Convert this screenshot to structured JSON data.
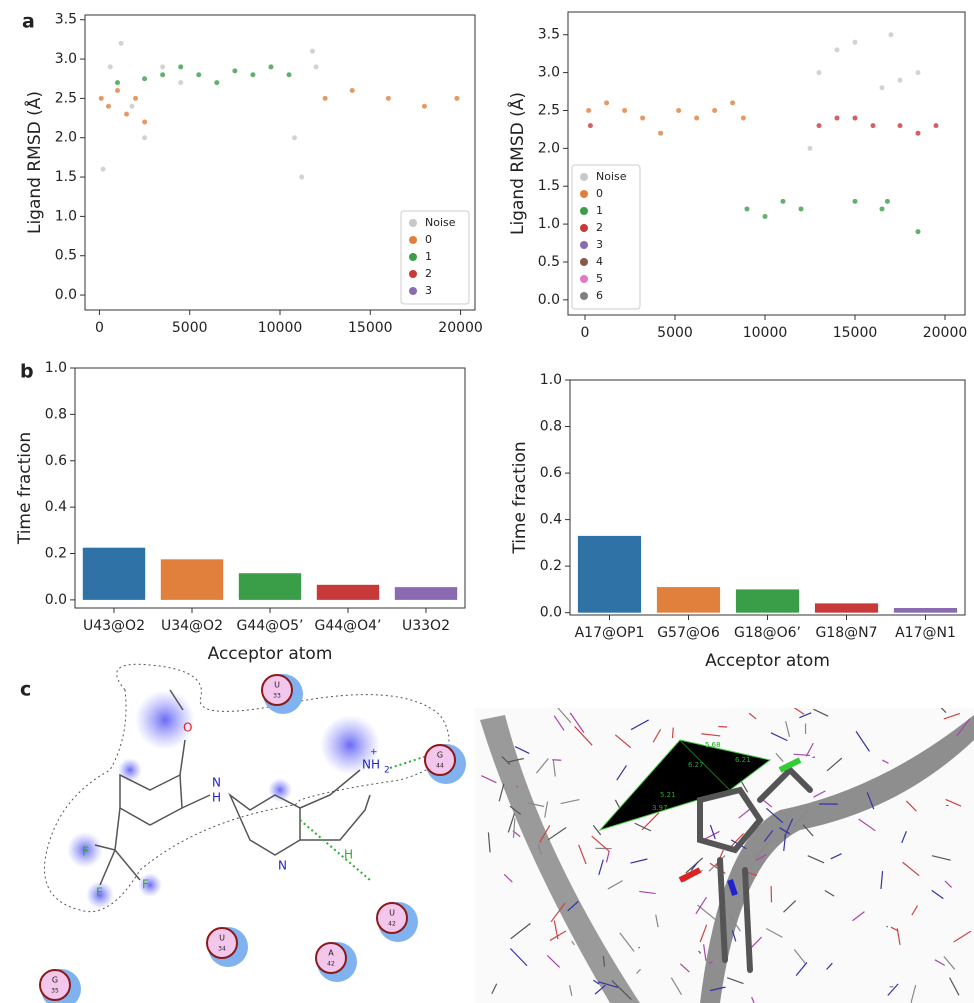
{
  "panels": [
    "a",
    "b",
    "c"
  ],
  "chart_data": [
    {
      "type": "scatter",
      "ylabel": "Ligand RMSD (Å)",
      "xlim": [
        -800,
        20800
      ],
      "xticks": [
        0,
        5000,
        10000,
        15000,
        20000
      ],
      "ylim": [
        -0.19,
        3.56
      ],
      "yticks": [
        {
          "value": 0,
          "label": "0.0"
        },
        {
          "value": 0.5,
          "label": "0.5"
        },
        {
          "value": 1,
          "label": "1.0"
        },
        {
          "value": 1.5,
          "label": "1.5"
        },
        {
          "value": 2,
          "label": "2.0"
        },
        {
          "value": 2.5,
          "label": "2.5"
        },
        {
          "value": 3,
          "label": "3.0"
        },
        {
          "value": 3.5,
          "label": "3.5"
        }
      ],
      "legend": "lower right",
      "series": [
        {
          "name": "Noise",
          "color": "#c8c8c8",
          "x": [
            200,
            600,
            1200,
            1800,
            2500,
            3500,
            4500,
            10800,
            11200,
            11800,
            12000
          ],
          "values": [
            1.6,
            2.9,
            3.2,
            2.4,
            2.0,
            2.9,
            2.7,
            2.0,
            1.5,
            3.1,
            2.9
          ]
        },
        {
          "name": "0",
          "color": "#e0803c",
          "x": [
            100,
            500,
            1000,
            1500,
            2000,
            2500,
            12500,
            14000,
            16000,
            18000,
            19800
          ],
          "values": [
            2.5,
            2.4,
            2.6,
            2.3,
            2.5,
            2.2,
            2.5,
            2.6,
            2.5,
            2.4,
            2.5
          ]
        },
        {
          "name": "1",
          "color": "#3a9e48",
          "x": [
            1000,
            2500,
            3500,
            4500,
            5500,
            6500,
            7500,
            8500,
            9500,
            10500
          ],
          "values": [
            2.7,
            2.75,
            2.8,
            2.9,
            2.8,
            2.7,
            2.85,
            2.8,
            2.9,
            2.8
          ]
        },
        {
          "name": "2",
          "color": "#c83a3a",
          "x": [],
          "values": []
        },
        {
          "name": "3",
          "color": "#8a6ab0",
          "x": [],
          "values": []
        }
      ]
    },
    {
      "type": "scatter",
      "ylabel": "Ligand RMSD (Å)",
      "xlim": [
        -944,
        21111
      ],
      "xticks": [
        0,
        5000,
        10000,
        15000,
        20000
      ],
      "ylim": [
        -0.2,
        3.8
      ],
      "yticks": [
        {
          "value": 0,
          "label": "0.0"
        },
        {
          "value": 0.5,
          "label": "0.5"
        },
        {
          "value": 1,
          "label": "1.0"
        },
        {
          "value": 1.5,
          "label": "1.5"
        },
        {
          "value": 2,
          "label": "2.0"
        },
        {
          "value": 2.5,
          "label": "2.5"
        },
        {
          "value": 3,
          "label": "3.0"
        },
        {
          "value": 3.5,
          "label": "3.5"
        }
      ],
      "legend": "lower left",
      "series": [
        {
          "name": "Noise",
          "color": "#c8c8c8",
          "x": [
            12500,
            13000,
            14000,
            15000,
            16500,
            17000,
            17500,
            18500
          ],
          "values": [
            2.0,
            3.0,
            3.3,
            3.4,
            2.8,
            3.5,
            2.9,
            3.0
          ]
        },
        {
          "name": "0",
          "color": "#e0803c",
          "x": [
            200,
            1200,
            2200,
            3200,
            4200,
            5200,
            6200,
            7200,
            8200,
            8800
          ],
          "values": [
            2.5,
            2.6,
            2.5,
            2.4,
            2.2,
            2.5,
            2.4,
            2.5,
            2.6,
            2.4
          ]
        },
        {
          "name": "1",
          "color": "#3a9e48",
          "x": [
            9000,
            10000,
            11000,
            12000,
            15000,
            16500,
            16800,
            18500
          ],
          "values": [
            1.2,
            1.1,
            1.3,
            1.2,
            1.3,
            1.2,
            1.3,
            0.9
          ]
        },
        {
          "name": "2",
          "color": "#c83a3a",
          "x": [
            300,
            13000,
            14000,
            15000,
            16000,
            17500,
            18500,
            19500
          ],
          "values": [
            2.3,
            2.3,
            2.4,
            2.4,
            2.3,
            2.3,
            2.2,
            2.3
          ]
        },
        {
          "name": "3",
          "color": "#8a6ab0",
          "x": [],
          "values": []
        },
        {
          "name": "4",
          "color": "#8c564b",
          "x": [],
          "values": []
        },
        {
          "name": "5",
          "color": "#e377c2",
          "x": [],
          "values": []
        },
        {
          "name": "6",
          "color": "#7f7f7f",
          "x": [],
          "values": []
        }
      ]
    },
    {
      "type": "bar",
      "ylabel": "Time fraction",
      "xlabel": "Acceptor atom",
      "categories": [
        "U43@O2",
        "U34@O2",
        "G44@O5’",
        "G44@O4’",
        "U33O2"
      ],
      "values": [
        0.225,
        0.175,
        0.115,
        0.065,
        0.055
      ],
      "colors": [
        "#2f72a6",
        "#e0803c",
        "#3a9e48",
        "#c83a3a",
        "#8a6ab0"
      ],
      "ylim": [
        -0.035,
        1.0
      ],
      "yticks": [
        {
          "value": 0,
          "label": "0.0"
        },
        {
          "value": 0.2,
          "label": "0.2"
        },
        {
          "value": 0.4,
          "label": "0.4"
        },
        {
          "value": 0.6,
          "label": "0.6"
        },
        {
          "value": 0.8,
          "label": "0.8"
        },
        {
          "value": 1,
          "label": "1.0"
        }
      ]
    },
    {
      "type": "bar",
      "ylabel": "Time fraction",
      "xlabel": "Acceptor atom",
      "categories": [
        "A17@OP1",
        "G57@O6",
        "G18@O6’",
        "G18@N7",
        "A17@N1"
      ],
      "values": [
        0.33,
        0.11,
        0.1,
        0.04,
        0.02
      ],
      "colors": [
        "#2f72a6",
        "#e0803c",
        "#3a9e48",
        "#c83a3a",
        "#8a6ab0"
      ],
      "ylim": [
        -0.01,
        1.0
      ],
      "yticks": [
        {
          "value": 0,
          "label": "0.0"
        },
        {
          "value": 0.2,
          "label": "0.2"
        },
        {
          "value": 0.4,
          "label": "0.4"
        },
        {
          "value": 0.6,
          "label": "0.6"
        },
        {
          "value": 0.8,
          "label": "0.8"
        },
        {
          "value": 1,
          "label": "1.0"
        }
      ]
    }
  ],
  "diagram": {
    "residues": [
      {
        "base": "U",
        "number": "33"
      },
      {
        "base": "G",
        "number": "44"
      },
      {
        "base": "U",
        "number": "42"
      },
      {
        "base": "U",
        "number": "34"
      },
      {
        "base": "A",
        "number": "42"
      },
      {
        "base": "G",
        "number": "35"
      }
    ],
    "atoms": [
      "O",
      "N",
      "H",
      "NH",
      "+",
      "2",
      "N",
      "H",
      "F",
      "F",
      "F"
    ],
    "distances": [
      "5.68",
      "6.21",
      "6.27",
      "5.21",
      "3.97"
    ]
  }
}
